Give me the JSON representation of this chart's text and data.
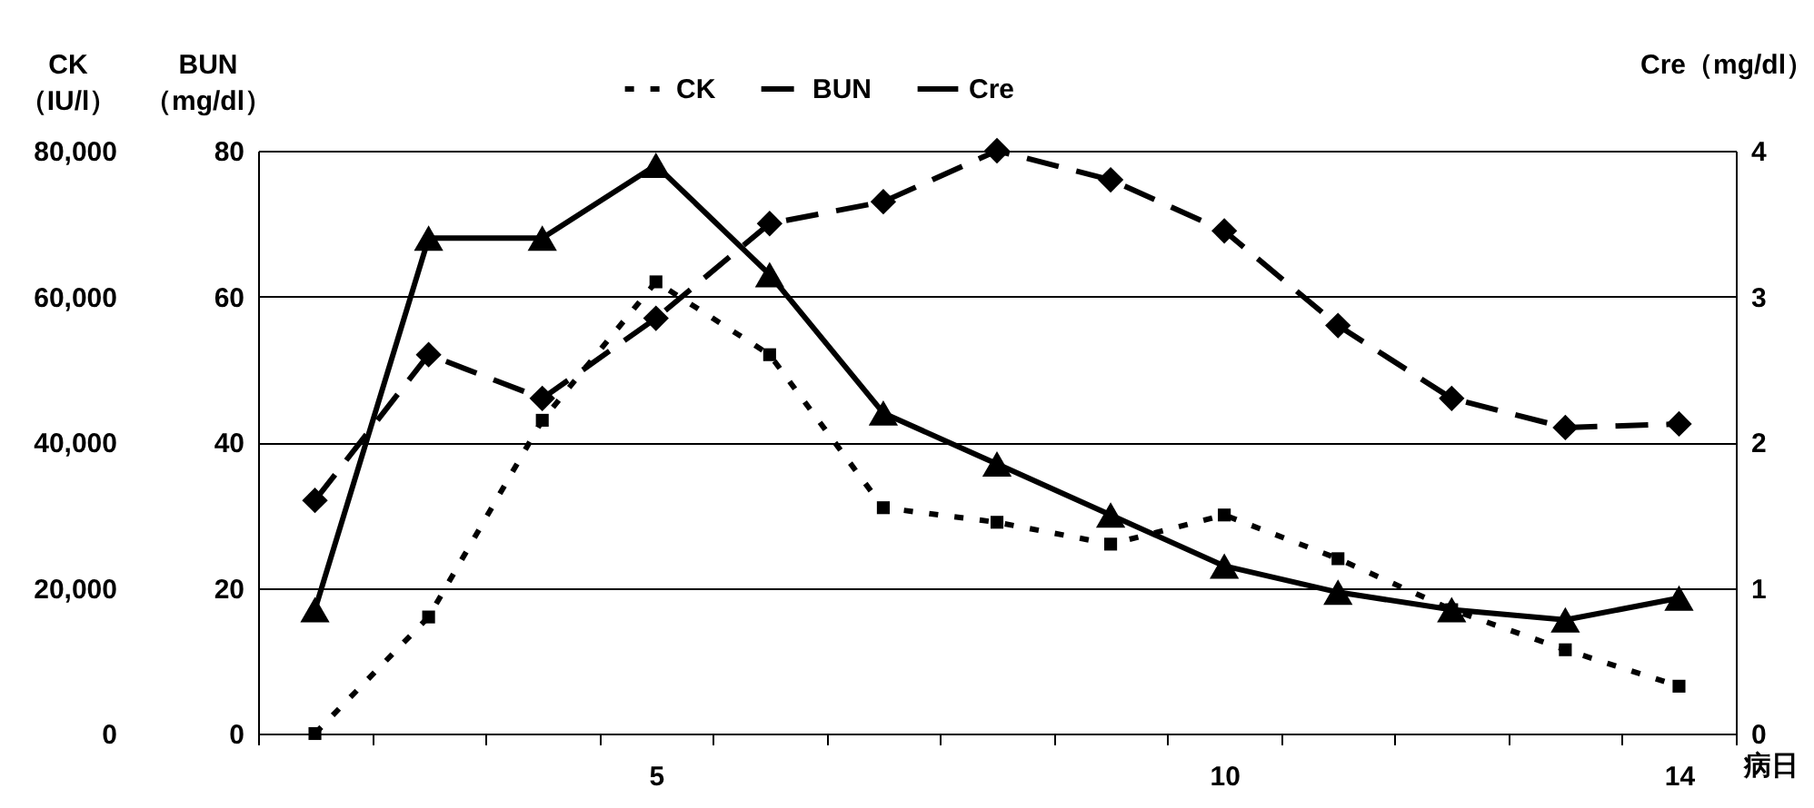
{
  "chart_data": {
    "type": "line",
    "ylabel": "BUN\n（mg/dl）",
    "y2label": "Cre（mg/dl）",
    "y3label": "CK\n（IU/l）",
    "xlabel": "病日",
    "categories": [
      null,
      null,
      null,
      "5",
      null,
      null,
      null,
      null,
      "10",
      null,
      null,
      null,
      "14"
    ],
    "series": [
      {
        "name": "CK",
        "color": "#000000",
        "axis": "y3",
        "marker": "square",
        "line_style": "dotted",
        "values": [
          0,
          16000,
          43000,
          62000,
          52000,
          31000,
          29000,
          26000,
          30000,
          24000,
          17000,
          11500,
          6500
        ]
      },
      {
        "name": "BUN",
        "color": "#000000",
        "axis": "y",
        "marker": "diamond",
        "line_style": "dashed",
        "values": [
          32,
          52,
          46,
          57,
          70,
          73,
          80,
          76,
          69,
          56,
          46,
          42,
          42.5
        ]
      },
      {
        "name": "Cre",
        "color": "#000000",
        "axis": "y2",
        "marker": "triangle",
        "line_style": "solid",
        "values": [
          0.85,
          3.4,
          3.4,
          3.9,
          3.15,
          2.2,
          1.85,
          1.5,
          1.15,
          0.97,
          0.85,
          0.78,
          0.93
        ]
      }
    ],
    "ylim": [
      0,
      80
    ],
    "yticks": [
      0,
      20,
      40,
      60,
      80
    ],
    "y2lim": [
      0,
      4
    ],
    "y2ticks": [
      0,
      1,
      2,
      3,
      4
    ],
    "y3lim": [
      0,
      80000
    ],
    "y3ticks": [
      0,
      {
        "value": 20000,
        "label": "20,000"
      },
      {
        "value": 40000,
        "label": "40,000"
      },
      {
        "value": 60000,
        "label": "60,000"
      },
      {
        "value": 80000,
        "label": "80,000"
      }
    ],
    "grid": "y",
    "legend": "top"
  }
}
